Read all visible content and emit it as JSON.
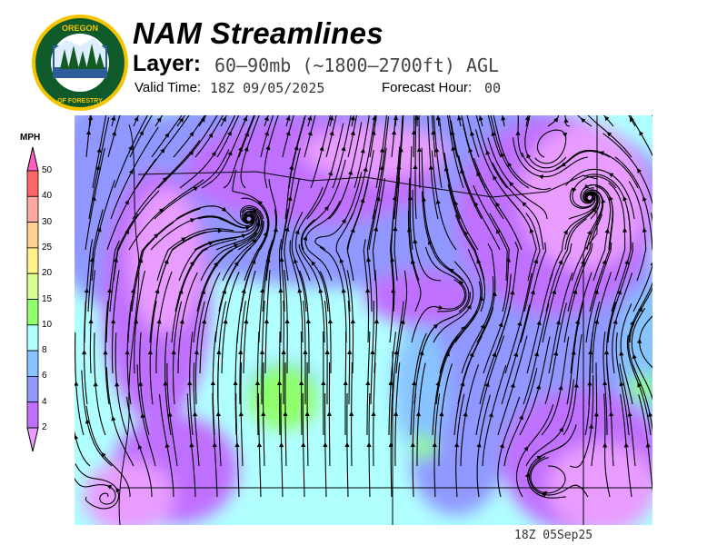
{
  "header": {
    "title": "NAM Streamlines",
    "layer_label": "Layer:",
    "layer_value": "60–90mb (~1800–2700ft) AGL",
    "valid_label": "Valid Time:",
    "valid_value": "18Z 09/05/2025",
    "forecast_hour_label": "Forecast Hour:",
    "forecast_hour_value": "00"
  },
  "logo": {
    "text_top": "OREGON",
    "text_bottom": "DEPARTMENT OF FORESTRY"
  },
  "legend": {
    "units": "MPH",
    "ticks": [
      "50",
      "40",
      "30",
      "25",
      "20",
      "15",
      "10",
      "8",
      "6",
      "4",
      "2"
    ],
    "colors": [
      "#ff6666",
      "#ffaaa0",
      "#ffd090",
      "#fff08a",
      "#d8ff90",
      "#90ff6c",
      "#b0ffff",
      "#88c4ff",
      "#9098ff",
      "#c070ff"
    ],
    "over_color": "#ff60c0",
    "under_color": "#e89cff"
  },
  "map": {
    "background_color": "#b0ffff",
    "colors": {
      "calm": "#e89cff",
      "light": "#c070ff",
      "blue_4_6": "#9098ff",
      "blue_6_8": "#88c4ff",
      "green": "#90ff6c"
    }
  },
  "footer": {
    "timestamp": "18Z 05Sep25"
  }
}
